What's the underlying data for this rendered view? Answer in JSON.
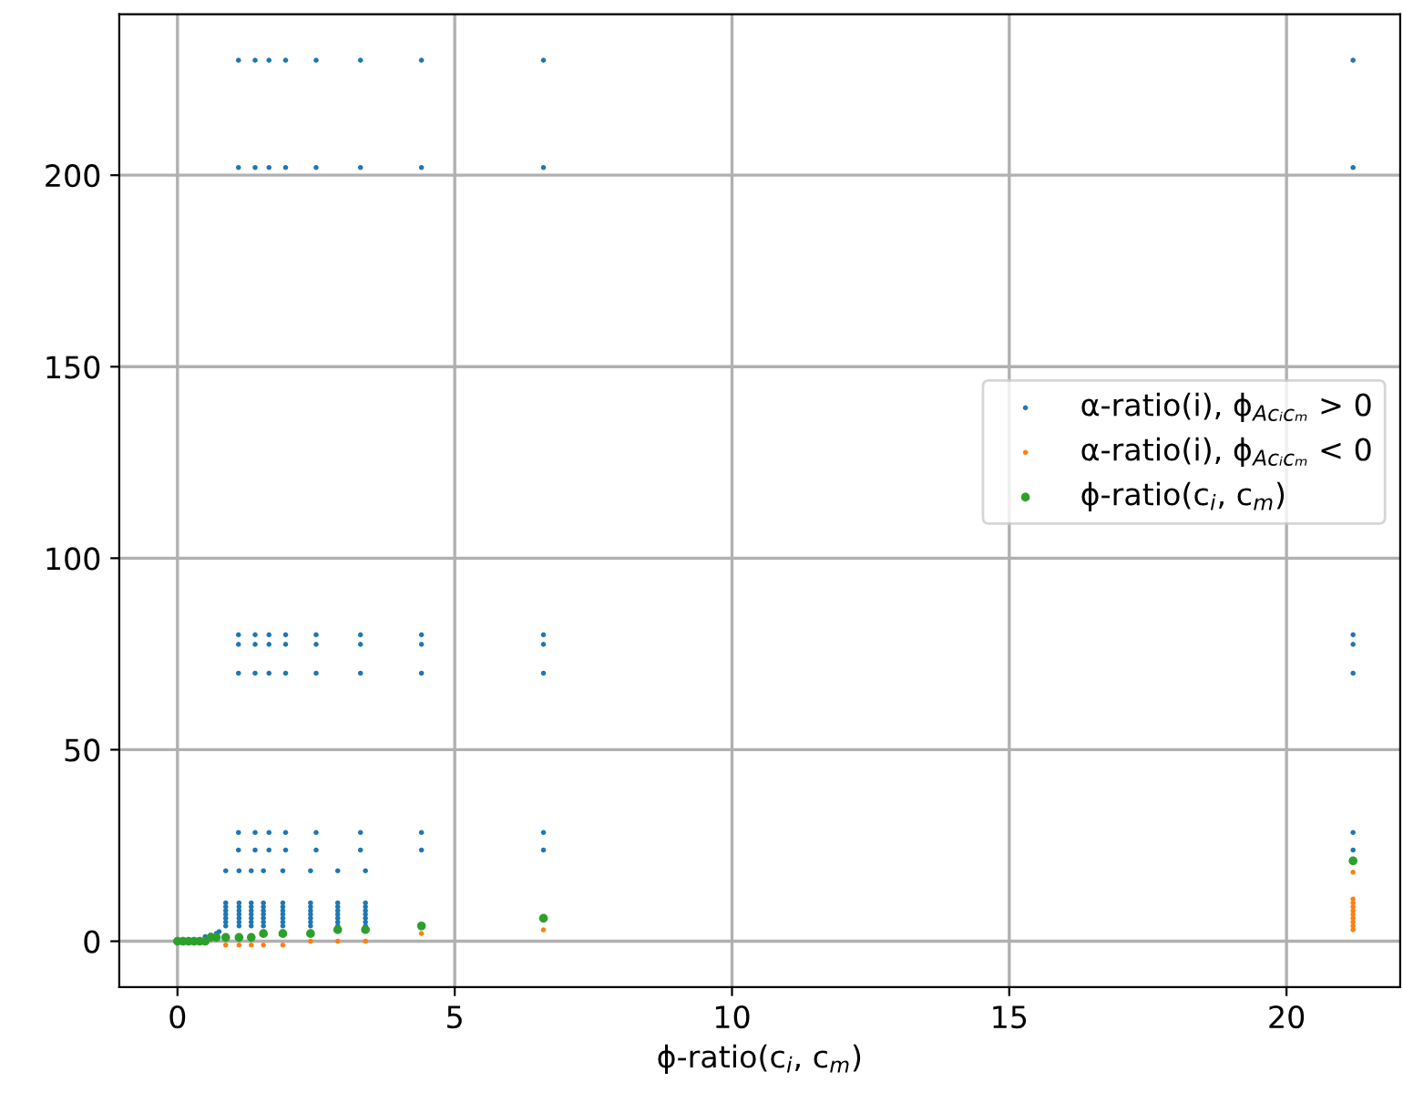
{
  "chart_data": {
    "type": "scatter",
    "xlabel": "ϕ-ratio(c$_{i}$, c$_{m}$)",
    "xlim": [
      -1.05,
      22.05
    ],
    "ylim": [
      -12,
      242
    ],
    "xticks": [
      0,
      5,
      10,
      15,
      20
    ],
    "yticks": [
      0,
      50,
      100,
      150,
      200
    ],
    "grid": true,
    "legend": "right",
    "marker": "circle",
    "series": [
      {
        "name": "α-ratio(i), ϕ$_{Acᵢcₘ}$ > 0",
        "color": "#1f77b4",
        "x": [
          1.1,
          1.4,
          1.65,
          1.95,
          2.5,
          3.3,
          4.4,
          6.6,
          21.2,
          1.1,
          1.4,
          1.65,
          1.95,
          2.5,
          3.3,
          4.4,
          6.6,
          21.2,
          1.1,
          1.4,
          1.65,
          1.95,
          2.5,
          3.3,
          4.4,
          6.6,
          21.2,
          1.1,
          1.4,
          1.65,
          1.95,
          2.5,
          3.3,
          4.4,
          6.6,
          21.2,
          1.1,
          1.4,
          1.65,
          1.95,
          2.5,
          3.3,
          4.4,
          6.6,
          21.2,
          1.1,
          1.4,
          1.65,
          1.95,
          2.5,
          3.3,
          4.4,
          6.6,
          21.2,
          1.1,
          1.4,
          1.65,
          1.95,
          2.5,
          3.3,
          4.4,
          6.6,
          21.2,
          0.87,
          1.11,
          1.33,
          1.55,
          1.9,
          2.4,
          2.89,
          3.39,
          0.87,
          0.87,
          0.87,
          0.87,
          0.87,
          0.87,
          0.87,
          1.11,
          1.11,
          1.11,
          1.11,
          1.11,
          1.11,
          1.11,
          1.33,
          1.33,
          1.33,
          1.33,
          1.33,
          1.33,
          1.33,
          1.55,
          1.55,
          1.55,
          1.55,
          1.55,
          1.55,
          1.55,
          1.9,
          1.9,
          1.9,
          1.9,
          1.9,
          1.9,
          1.9,
          2.4,
          2.4,
          2.4,
          2.4,
          2.4,
          2.4,
          2.4,
          2.89,
          2.89,
          2.89,
          2.89,
          2.89,
          2.89,
          2.89,
          3.39,
          3.39,
          3.39,
          3.39,
          3.39,
          3.39,
          3.39,
          0.5,
          0.6,
          0.7,
          0.75
        ],
        "values": [
          230,
          230,
          230,
          230,
          230,
          230,
          230,
          230,
          230,
          202,
          202,
          202,
          202,
          202,
          202,
          202,
          202,
          202,
          80,
          80,
          80,
          80,
          80,
          80,
          80,
          80,
          80,
          77.5,
          77.5,
          77.5,
          77.5,
          77.5,
          77.5,
          77.5,
          77.5,
          77.5,
          70,
          70,
          70,
          70,
          70,
          70,
          70,
          70,
          70,
          28.4,
          28.4,
          28.4,
          28.4,
          28.4,
          28.4,
          28.4,
          28.4,
          28.4,
          23.8,
          23.8,
          23.8,
          23.8,
          23.8,
          23.8,
          23.8,
          23.8,
          23.8,
          18.4,
          18.4,
          18.4,
          18.4,
          18.4,
          18.4,
          18.4,
          18.4,
          4,
          5,
          6,
          7,
          8,
          9,
          10,
          4,
          5,
          6,
          7,
          8,
          9,
          10,
          4,
          5,
          6,
          7,
          8,
          9,
          10,
          4,
          5,
          6,
          7,
          8,
          9,
          10,
          4,
          5,
          6,
          7,
          8,
          9,
          10,
          4,
          5,
          6,
          7,
          8,
          9,
          10,
          4,
          5,
          6,
          7,
          8,
          9,
          10,
          4,
          5,
          6,
          7,
          8,
          9,
          10,
          1.2,
          1.6,
          2,
          2.5
        ]
      },
      {
        "name": "α-ratio(i), ϕ$_{Acᵢcₘ}$ < 0",
        "color": "#ff7f0e",
        "x": [
          0.87,
          1.11,
          1.33,
          1.55,
          1.9,
          2.4,
          2.89,
          3.39,
          4.4,
          6.6,
          21.2,
          21.2,
          21.2,
          21.2,
          21.2,
          21.2,
          21.2,
          21.2,
          21.2,
          21.2
        ],
        "values": [
          -1,
          -1,
          -1,
          -1,
          -1,
          0,
          0,
          0,
          2,
          3,
          18,
          11,
          10,
          9,
          8,
          7,
          6,
          5,
          4,
          3
        ]
      },
      {
        "name": "ϕ-ratio(c$_{i}$, c$_{m}$)",
        "color": "#2ca02c",
        "x": [
          0,
          0.1,
          0.2,
          0.3,
          0.4,
          0.5,
          0.6,
          0.7,
          0.87,
          1.11,
          1.33,
          1.55,
          1.9,
          2.4,
          2.89,
          3.39,
          4.4,
          6.6,
          21.2
        ],
        "values": [
          0,
          0,
          0,
          0,
          0,
          0,
          1,
          1,
          1,
          1,
          1,
          2,
          2,
          2,
          3,
          3,
          4,
          6,
          21
        ]
      }
    ]
  }
}
